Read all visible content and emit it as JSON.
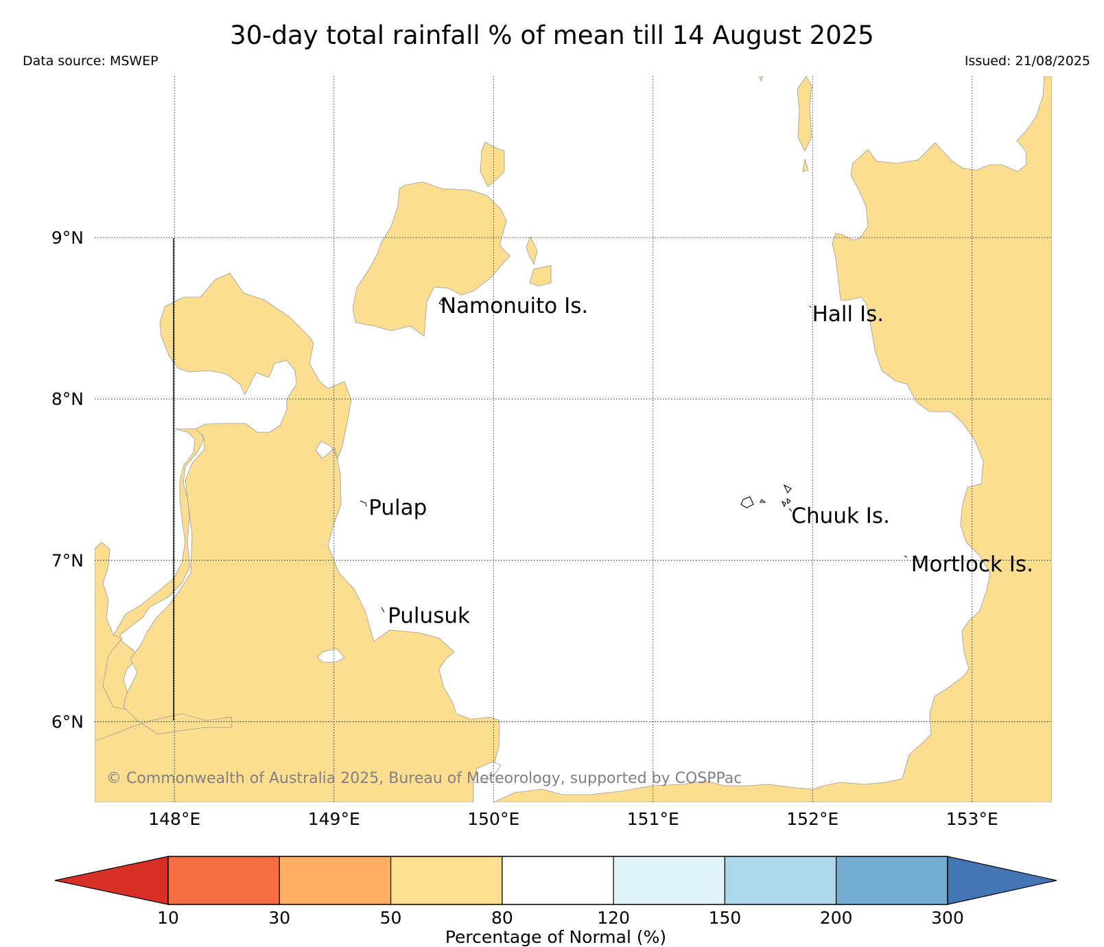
{
  "header": {
    "title": "30-day total rainfall % of mean till 14 August 2025",
    "data_source": "Data source: MSWEP",
    "issued": "Issued: 21/08/2025"
  },
  "map": {
    "lon_range": [
      147.5,
      153.5
    ],
    "lat_range": [
      5.5,
      10.0
    ],
    "gridlines": "dotted",
    "lon_ticks": [
      {
        "value": 148,
        "label": "148°E"
      },
      {
        "value": 149,
        "label": "149°E"
      },
      {
        "value": 150,
        "label": "150°E"
      },
      {
        "value": 151,
        "label": "151°E"
      },
      {
        "value": 152,
        "label": "152°E"
      },
      {
        "value": 153,
        "label": "153°E"
      }
    ],
    "lat_ticks": [
      {
        "value": 6,
        "label": "6°N"
      },
      {
        "value": 7,
        "label": "7°N"
      },
      {
        "value": 8,
        "label": "8°N"
      },
      {
        "value": 9,
        "label": "9°N"
      }
    ],
    "place_labels": [
      {
        "name": "Namonuito Is.",
        "lon": 149.65,
        "lat": 8.6
      },
      {
        "name": "Hall Is.",
        "lon": 151.98,
        "lat": 8.55
      },
      {
        "name": "Pulap",
        "lon": 149.2,
        "lat": 7.35
      },
      {
        "name": "Chuuk Is.",
        "lon": 151.85,
        "lat": 7.3
      },
      {
        "name": "Mortlock Is.",
        "lon": 152.6,
        "lat": 7.0
      },
      {
        "name": "Pulusuk",
        "lon": 149.32,
        "lat": 6.68
      }
    ],
    "fill_color_dry": "#fdde90",
    "fill_color_normal": "#ffffff",
    "copyright": "© Commonwealth of Australia 2025, Bureau of Meteorology, supported by COSPPac"
  },
  "colorbar": {
    "label": "Percentage of Normal (%)",
    "ticks": [
      "10",
      "30",
      "50",
      "80",
      "120",
      "150",
      "200",
      "300"
    ],
    "colors": [
      "#d73027",
      "#f46d43",
      "#fdae61",
      "#fee090",
      "#ffffff",
      "#e0f3f8",
      "#abd9e9",
      "#74add1",
      "#4575b4"
    ]
  }
}
